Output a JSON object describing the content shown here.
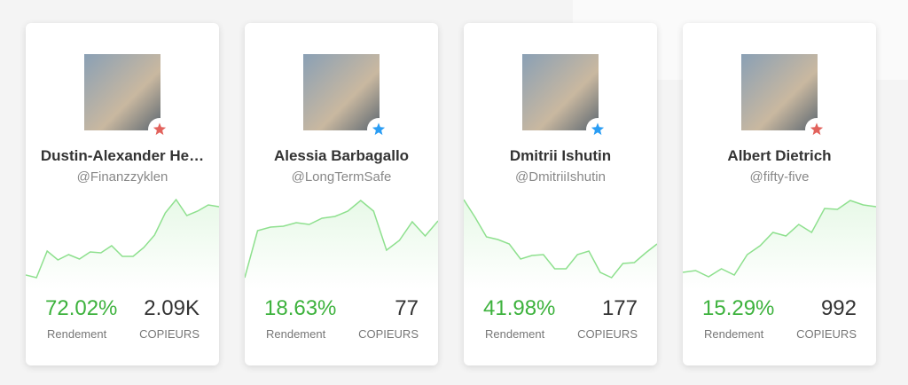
{
  "cards": [
    {
      "name": "Dustin-Alexander He…",
      "handle": "@Finanzzyklen",
      "return": "72.02%",
      "return_label": "Rendement",
      "copiers": "2.09K",
      "copiers_label": "COPIEURS",
      "badge_color": "#e2625c",
      "sparkline": [
        10,
        7,
        37,
        27,
        33,
        28,
        36,
        35,
        43,
        31,
        31,
        41,
        55,
        80,
        95,
        77,
        82,
        89,
        87
      ]
    },
    {
      "name": "Alessia Barbagallo",
      "handle": "@LongTermSafe",
      "return": "18.63%",
      "return_label": "Rendement",
      "copiers": "77",
      "copiers_label": "COPIEURS",
      "badge_color": "#2a9df4",
      "sparkline": [
        7,
        60,
        64,
        65,
        69,
        67,
        74,
        76,
        82,
        94,
        82,
        38,
        49,
        70,
        54,
        71
      ]
    },
    {
      "name": "Dmitrii Ishutin",
      "handle": "@DmitriiIshutin",
      "return": "41.98%",
      "return_label": "Rendement",
      "copiers": "177",
      "copiers_label": "COPIEURS",
      "badge_color": "#2a9df4",
      "sparkline": [
        95,
        75,
        53,
        50,
        45,
        28,
        32,
        33,
        17,
        17,
        33,
        37,
        13,
        7,
        23,
        24,
        35,
        45
      ]
    },
    {
      "name": "Albert Dietrich",
      "handle": "@fifty-five",
      "return": "15.29%",
      "return_label": "Rendement",
      "copiers": "992",
      "copiers_label": "COPIEURS",
      "badge_color": "#e2625c",
      "sparkline": [
        13,
        15,
        8,
        17,
        10,
        33,
        43,
        58,
        54,
        67,
        58,
        85,
        84,
        94,
        89,
        87
      ]
    }
  ]
}
